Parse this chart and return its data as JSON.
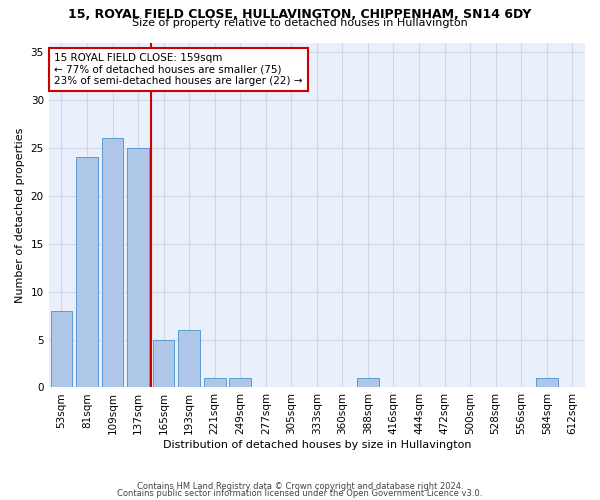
{
  "title_line1": "15, ROYAL FIELD CLOSE, HULLAVINGTON, CHIPPENHAM, SN14 6DY",
  "title_line2": "Size of property relative to detached houses in Hullavington",
  "xlabel": "Distribution of detached houses by size in Hullavington",
  "ylabel": "Number of detached properties",
  "footer_line1": "Contains HM Land Registry data © Crown copyright and database right 2024.",
  "footer_line2": "Contains public sector information licensed under the Open Government Licence v3.0.",
  "categories": [
    "53sqm",
    "81sqm",
    "109sqm",
    "137sqm",
    "165sqm",
    "193sqm",
    "221sqm",
    "249sqm",
    "277sqm",
    "305sqm",
    "333sqm",
    "360sqm",
    "388sqm",
    "416sqm",
    "444sqm",
    "472sqm",
    "500sqm",
    "528sqm",
    "556sqm",
    "584sqm",
    "612sqm"
  ],
  "values": [
    8,
    24,
    26,
    25,
    5,
    6,
    1,
    1,
    0,
    0,
    0,
    0,
    1,
    0,
    0,
    0,
    0,
    0,
    0,
    1,
    0
  ],
  "bar_color": "#aec6e8",
  "bar_edge_color": "#5b9bd5",
  "vline_x": 3.5,
  "vline_color": "#cc0000",
  "annotation_line1": "15 ROYAL FIELD CLOSE: 159sqm",
  "annotation_line2": "← 77% of detached houses are smaller (75)",
  "annotation_line3": "23% of semi-detached houses are larger (22) →",
  "annotation_box_color": "#ffffff",
  "annotation_box_edge_color": "#cc0000",
  "ylim": [
    0,
    36
  ],
  "yticks": [
    0,
    5,
    10,
    15,
    20,
    25,
    30,
    35
  ],
  "grid_color": "#d0d8e8",
  "background_color": "#eaf0fb",
  "title_fontsize": 9,
  "subtitle_fontsize": 8,
  "bar_fontsize": 7.5,
  "ylabel_fontsize": 8,
  "xlabel_fontsize": 8,
  "footer_fontsize": 6
}
